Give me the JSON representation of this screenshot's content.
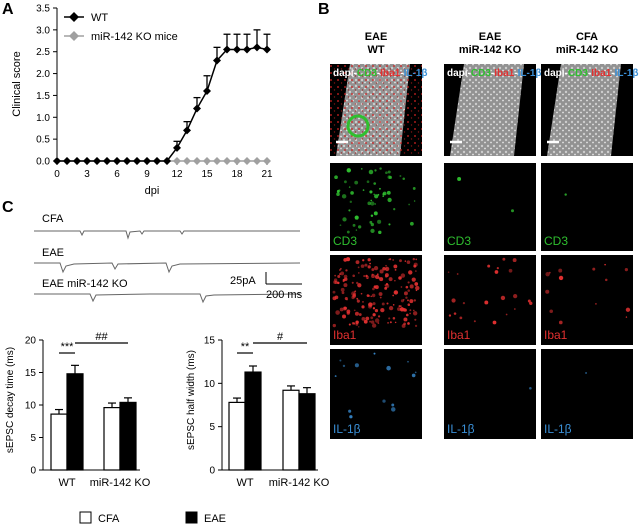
{
  "panels": {
    "a": "A",
    "b": "B",
    "c": "C"
  },
  "colors": {
    "wt": "#000000",
    "ko": "#a0a0a0",
    "cd3": "#2fbf2f",
    "iba1": "#e23030",
    "il1b": "#3a8fd6",
    "dapi": "#ffffff",
    "trace": "#666666"
  },
  "chart_data": [
    {
      "type": "line",
      "panel": "A",
      "xlabel": "dpi",
      "ylabel": "Clinical score",
      "xlim": [
        0,
        21
      ],
      "ylim": [
        0,
        3.5
      ],
      "xticks": [
        0,
        3,
        6,
        9,
        12,
        15,
        18,
        21
      ],
      "yticks": [
        0.0,
        0.5,
        1.0,
        1.5,
        2.0,
        2.5,
        3.0,
        3.5
      ],
      "legend_position": "top-left",
      "series": [
        {
          "name": "WT",
          "marker": "diamond",
          "color": "#000000",
          "x": [
            0,
            1,
            2,
            3,
            4,
            5,
            6,
            7,
            8,
            9,
            10,
            11,
            12,
            13,
            14,
            15,
            16,
            17,
            18,
            19,
            20,
            21
          ],
          "y": [
            0,
            0,
            0,
            0,
            0,
            0,
            0,
            0,
            0,
            0,
            0,
            0,
            0.3,
            0.7,
            1.2,
            1.6,
            2.3,
            2.55,
            2.55,
            2.55,
            2.6,
            2.55
          ],
          "err": [
            0,
            0,
            0,
            0,
            0,
            0,
            0,
            0,
            0,
            0,
            0,
            0,
            0.15,
            0.2,
            0.25,
            0.35,
            0.3,
            0.35,
            0.35,
            0.35,
            0.4,
            0.35
          ]
        },
        {
          "name": "miR-142 KO mice",
          "marker": "diamond",
          "color": "#a0a0a0",
          "x": [
            0,
            1,
            2,
            3,
            4,
            5,
            6,
            7,
            8,
            9,
            10,
            11,
            12,
            13,
            14,
            15,
            16,
            17,
            18,
            19,
            20,
            21
          ],
          "y": [
            0,
            0,
            0,
            0,
            0,
            0,
            0,
            0,
            0,
            0,
            0,
            0,
            0,
            0,
            0,
            0,
            0,
            0,
            0,
            0,
            0,
            0
          ],
          "err": [
            0,
            0,
            0,
            0,
            0,
            0,
            0,
            0,
            0,
            0,
            0,
            0,
            0,
            0,
            0,
            0,
            0,
            0,
            0,
            0,
            0,
            0
          ]
        }
      ]
    },
    {
      "type": "bar",
      "panel": "C-left",
      "ylabel": "sEPSC decay time (ms)",
      "ylim": [
        0,
        20
      ],
      "yticks": [
        0,
        5,
        10,
        15,
        20
      ],
      "groups": [
        "WT",
        "miR-142 KO"
      ],
      "series": [
        {
          "name": "CFA",
          "values": [
            8.6,
            9.6
          ],
          "err": [
            0.7,
            0.7
          ]
        },
        {
          "name": "EAE",
          "values": [
            14.8,
            10.4
          ],
          "err": [
            1.3,
            0.7
          ]
        }
      ],
      "annotations": [
        "***",
        "##"
      ]
    },
    {
      "type": "bar",
      "panel": "C-right",
      "ylabel": "sEPSC half width (ms)",
      "ylim": [
        0,
        15
      ],
      "yticks": [
        0,
        5,
        10,
        15
      ],
      "groups": [
        "WT",
        "miR-142 KO"
      ],
      "series": [
        {
          "name": "CFA",
          "values": [
            7.8,
            9.2
          ],
          "err": [
            0.5,
            0.5
          ]
        },
        {
          "name": "EAE",
          "values": [
            11.3,
            8.8
          ],
          "err": [
            0.7,
            0.7
          ]
        }
      ],
      "annotations": [
        "**",
        "#"
      ]
    }
  ],
  "traces": {
    "labels": [
      "CFA",
      "EAE",
      "EAE miR-142 KO"
    ],
    "scale_amplitude": "25pA",
    "scale_time": "200 ms"
  },
  "bar_legend": [
    "CFA",
    "EAE"
  ],
  "micro": {
    "column_headers": [
      [
        "EAE",
        "WT"
      ],
      [
        "EAE",
        "miR-142 KO"
      ],
      [
        "CFA",
        "miR-142 KO"
      ]
    ],
    "merge_label_parts": [
      "dapi-",
      "CD3",
      "-",
      "Iba1",
      "-",
      "IL-1β"
    ],
    "row_labels": [
      "CD3",
      "Iba1",
      "IL-1β"
    ]
  }
}
